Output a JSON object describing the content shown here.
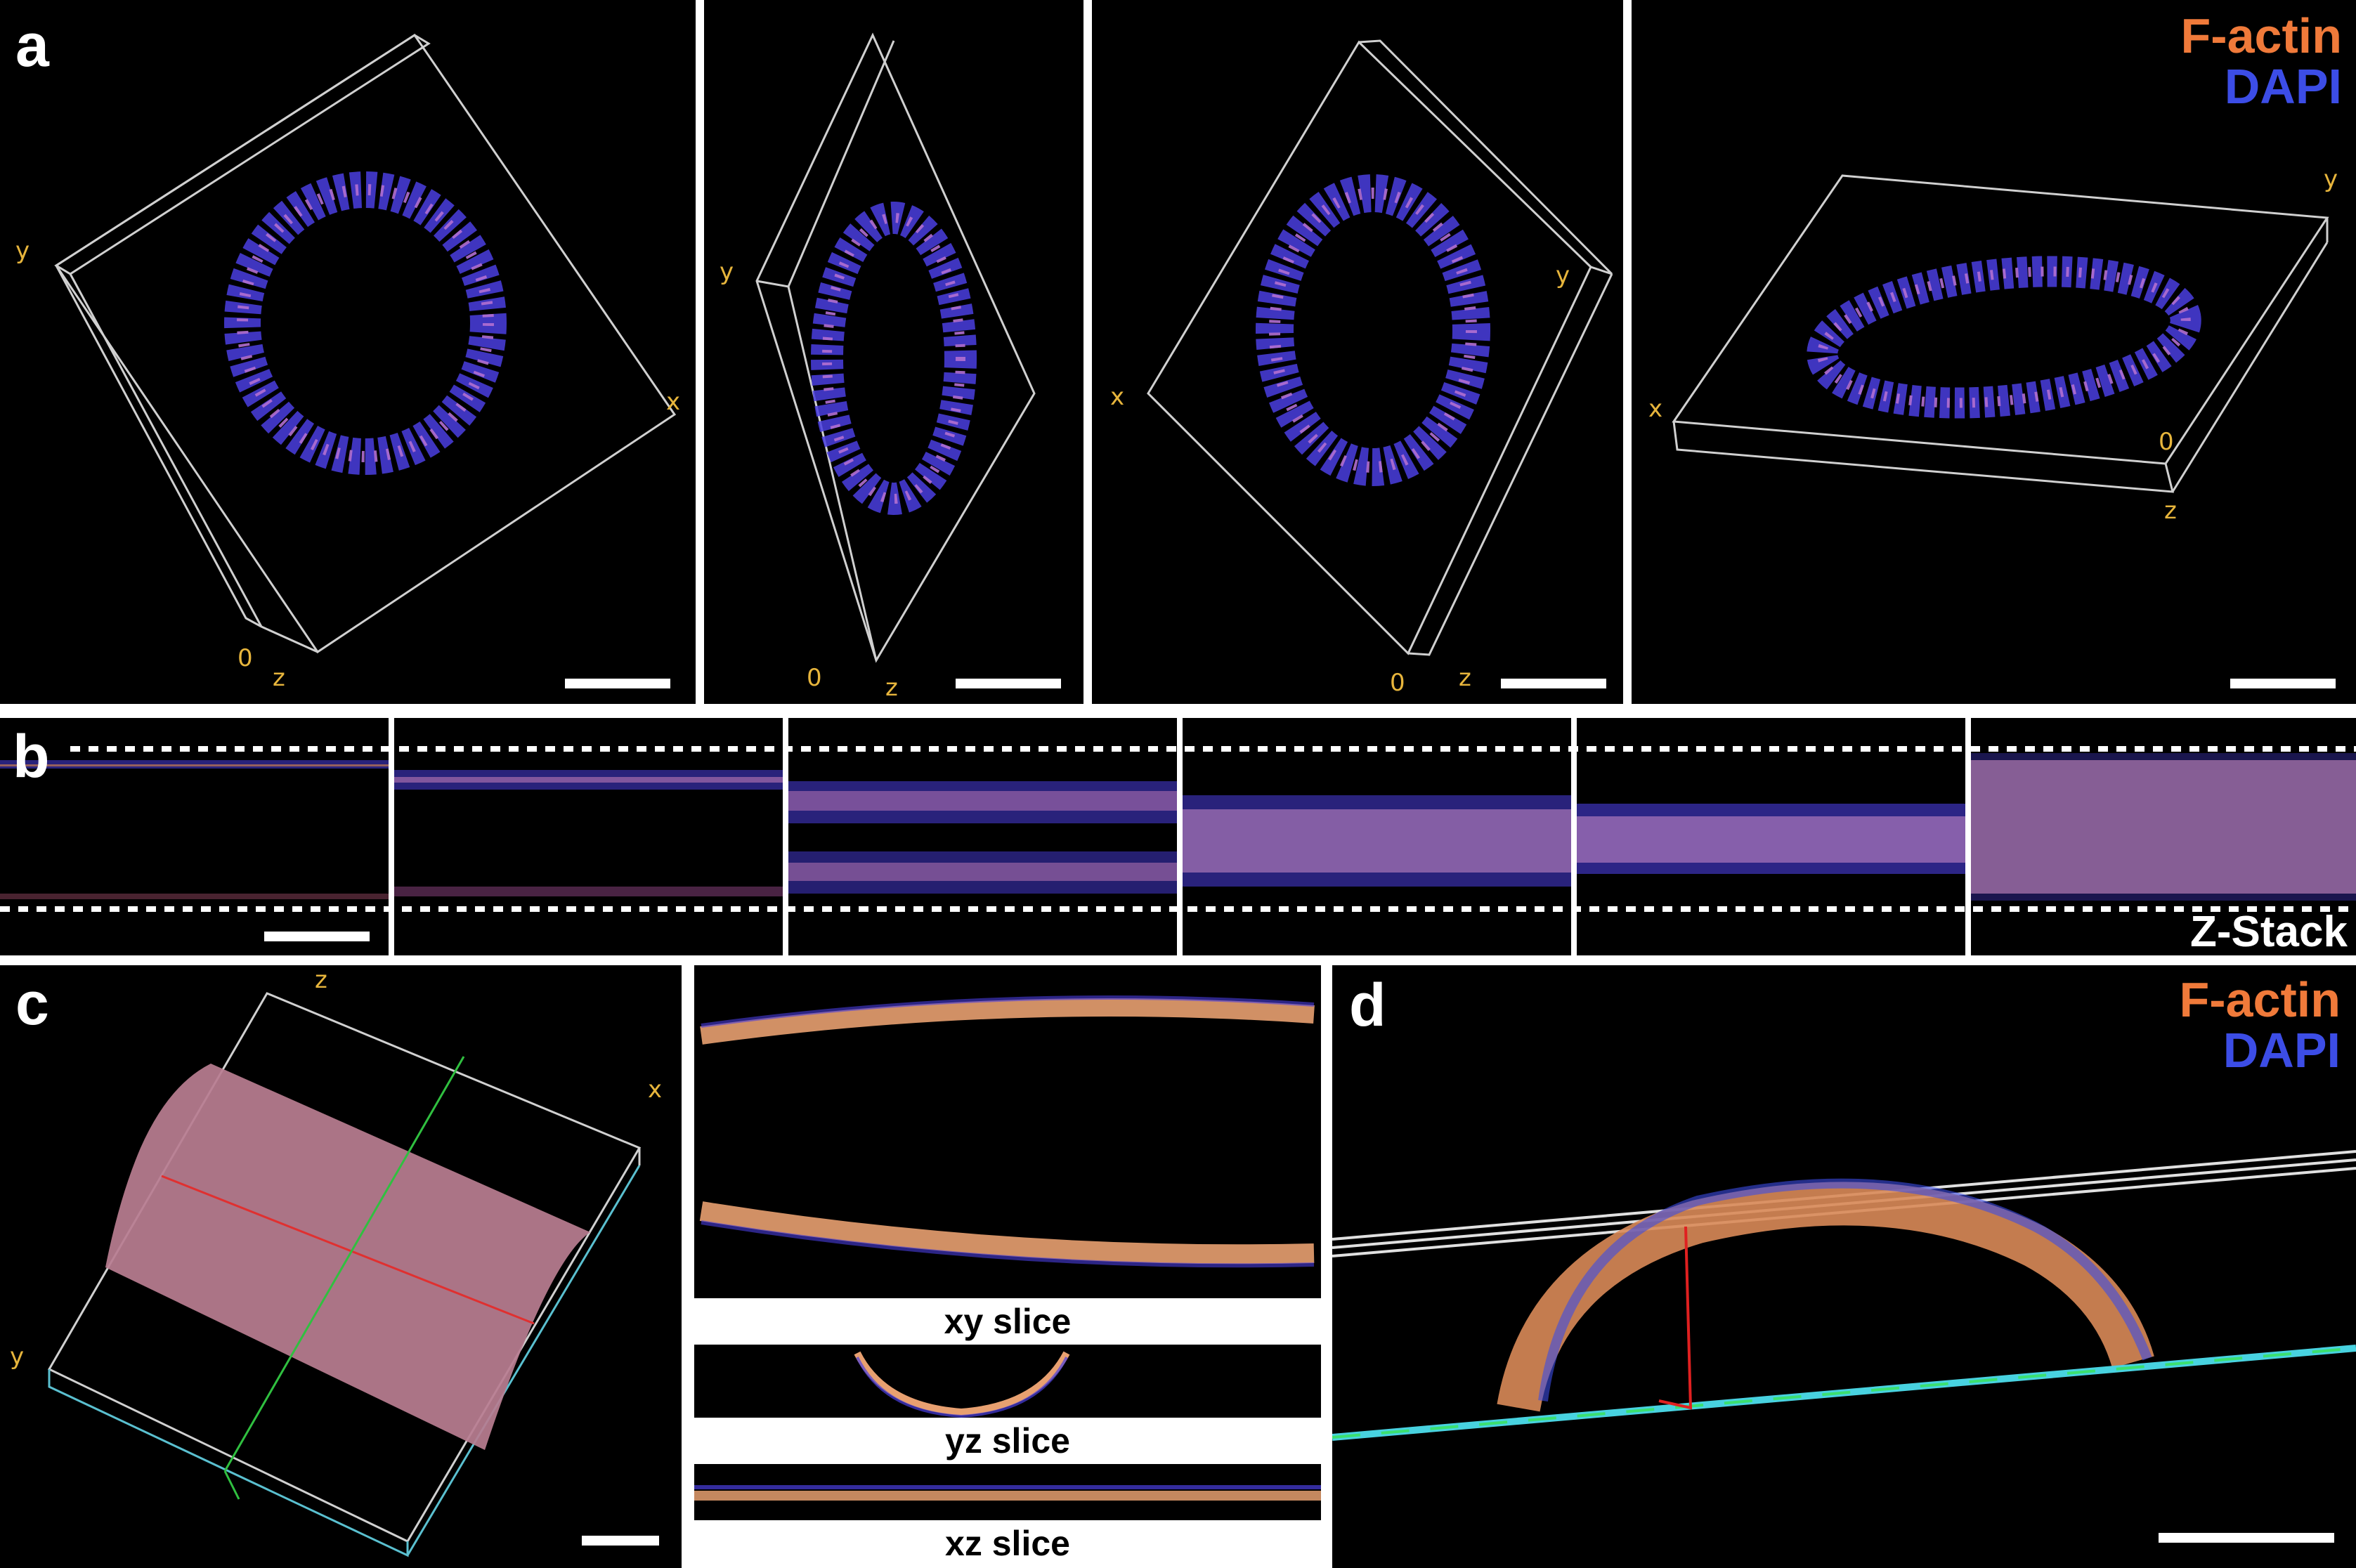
{
  "panel_labels": {
    "a": "a",
    "b": "b",
    "c": "c",
    "d": "d"
  },
  "legend": {
    "factin": "F-actin",
    "dapi": "DAPI",
    "factin_color": "#f07a3a",
    "dapi_color": "#3c4de6"
  },
  "axis_color": "#e7b53c",
  "panel_a": {
    "view1": {
      "y": "y",
      "x": "x",
      "origin": "0",
      "z": "z"
    },
    "view2": {
      "y": "y",
      "origin": "0",
      "z": "z"
    },
    "view3": {
      "x": "x",
      "y": "y",
      "origin": "0",
      "z": "z"
    },
    "view4": {
      "y": "y",
      "x": "x",
      "origin": "0",
      "z": "z"
    }
  },
  "panel_b": {
    "zstack_label": "Z-Stack"
  },
  "panel_c": {
    "axes": {
      "z": "z",
      "x": "x",
      "y": "y"
    },
    "captions": {
      "xy": "xy slice",
      "yz": "yz slice",
      "xz": "xz slice"
    }
  }
}
